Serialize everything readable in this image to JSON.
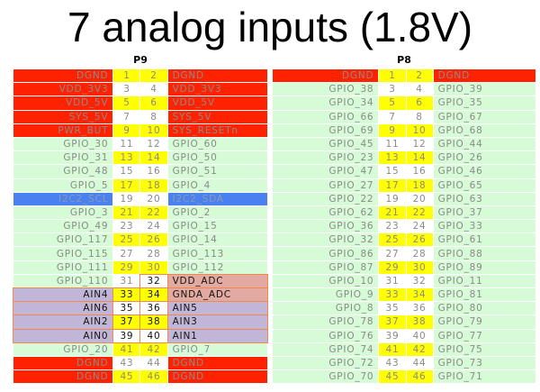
{
  "title": "7 analog inputs (1.8V)",
  "colors": {
    "red": "#ff2200",
    "gpio": "#d6fbd6",
    "i2c": "#4a80f0",
    "ain": "#c2b6d8",
    "adc": "#e3aaa2",
    "pin_highlight": "#ffff00",
    "ain_border": "#f08850"
  },
  "headers": [
    {
      "label": "P9",
      "rows": [
        [
          "DGND",
          "1",
          "2",
          "DGND",
          "red",
          "red"
        ],
        [
          "VDD_3V3",
          "3",
          "4",
          "VDD_3V3",
          "red",
          "red"
        ],
        [
          "VDD_5V",
          "5",
          "6",
          "VDD_5V",
          "red",
          "red"
        ],
        [
          "SYS_5V",
          "7",
          "8",
          "SYS_5V",
          "red",
          "red"
        ],
        [
          "PWR_BUT",
          "9",
          "10",
          "SYS_RESETn",
          "red",
          "red"
        ],
        [
          "GPIO_30",
          "11",
          "12",
          "GPIO_60",
          "gpio",
          "gpio"
        ],
        [
          "GPIO_31",
          "13",
          "14",
          "GPIO_50",
          "gpio",
          "gpio"
        ],
        [
          "GPIO_48",
          "15",
          "16",
          "GPIO_51",
          "gpio",
          "gpio"
        ],
        [
          "GPIO_5",
          "17",
          "18",
          "GPIO_4",
          "gpio",
          "gpio"
        ],
        [
          "I2C2_SCL",
          "19",
          "20",
          "I2C2_SDA",
          "i2c",
          "i2c"
        ],
        [
          "GPIO_3",
          "21",
          "22",
          "GPIO_2",
          "gpio",
          "gpio"
        ],
        [
          "GPIO_49",
          "23",
          "24",
          "GPIO_15",
          "gpio",
          "gpio"
        ],
        [
          "GPIO_117",
          "25",
          "26",
          "GPIO_14",
          "gpio",
          "gpio"
        ],
        [
          "GPIO_115",
          "27",
          "28",
          "GPIO_113",
          "gpio",
          "gpio"
        ],
        [
          "GPIO_111",
          "29",
          "30",
          "GPIO_112",
          "gpio",
          "gpio"
        ],
        [
          "GPIO_110",
          "31",
          "32",
          "VDD_ADC",
          "gpio",
          "adc"
        ],
        [
          "AIN4",
          "33",
          "34",
          "GNDA_ADC",
          "ain",
          "adc"
        ],
        [
          "AIN6",
          "35",
          "36",
          "AIN5",
          "ain",
          "ain"
        ],
        [
          "AIN2",
          "37",
          "38",
          "AIN3",
          "ain",
          "ain"
        ],
        [
          "AIN0",
          "39",
          "40",
          "AIN1",
          "ain",
          "ain"
        ],
        [
          "GPIO_20",
          "41",
          "42",
          "GPIO_7",
          "gpio",
          "gpio"
        ],
        [
          "DGND",
          "43",
          "44",
          "DGND",
          "red",
          "red"
        ],
        [
          "DGND",
          "45",
          "46",
          "DGND",
          "red",
          "red"
        ]
      ]
    },
    {
      "label": "P8",
      "rows": [
        [
          "DGND",
          "1",
          "2",
          "DGND",
          "red",
          "red"
        ],
        [
          "GPIO_38",
          "3",
          "4",
          "GPIO_39",
          "gpio",
          "gpio"
        ],
        [
          "GPIO_34",
          "5",
          "6",
          "GPIO_35",
          "gpio",
          "gpio"
        ],
        [
          "GPIO_66",
          "7",
          "8",
          "GPIO_67",
          "gpio",
          "gpio"
        ],
        [
          "GPIO_69",
          "9",
          "10",
          "GPIO_68",
          "gpio",
          "gpio"
        ],
        [
          "GPIO_45",
          "11",
          "12",
          "GPIO_44",
          "gpio",
          "gpio"
        ],
        [
          "GPIO_23",
          "13",
          "14",
          "GPIO_26",
          "gpio",
          "gpio"
        ],
        [
          "GPIO_47",
          "15",
          "16",
          "GPIO_46",
          "gpio",
          "gpio"
        ],
        [
          "GPIO_27",
          "17",
          "18",
          "GPIO_65",
          "gpio",
          "gpio"
        ],
        [
          "GPIO_22",
          "19",
          "20",
          "GPIO_63",
          "gpio",
          "gpio"
        ],
        [
          "GPIO_62",
          "21",
          "22",
          "GPIO_37",
          "gpio",
          "gpio"
        ],
        [
          "GPIO_36",
          "23",
          "24",
          "GPIO_33",
          "gpio",
          "gpio"
        ],
        [
          "GPIO_32",
          "25",
          "26",
          "GPIO_61",
          "gpio",
          "gpio"
        ],
        [
          "GPIO_86",
          "27",
          "28",
          "GPIO_88",
          "gpio",
          "gpio"
        ],
        [
          "GPIO_87",
          "29",
          "30",
          "GPIO_89",
          "gpio",
          "gpio"
        ],
        [
          "GPIO_10",
          "31",
          "32",
          "GPIO_11",
          "gpio",
          "gpio"
        ],
        [
          "GPIO_9",
          "33",
          "34",
          "GPIO_81",
          "gpio",
          "gpio"
        ],
        [
          "GPIO_8",
          "35",
          "36",
          "GPIO_80",
          "gpio",
          "gpio"
        ],
        [
          "GPIO_78",
          "37",
          "38",
          "GPIO_79",
          "gpio",
          "gpio"
        ],
        [
          "GPIO_76",
          "39",
          "40",
          "GPIO_77",
          "gpio",
          "gpio"
        ],
        [
          "GPIO_74",
          "41",
          "42",
          "GPIO_75",
          "gpio",
          "gpio"
        ],
        [
          "GPIO_72",
          "43",
          "44",
          "GPIO_73",
          "gpio",
          "gpio"
        ],
        [
          "GPIO_70",
          "45",
          "46",
          "GPIO_71",
          "gpio",
          "gpio"
        ]
      ]
    }
  ]
}
